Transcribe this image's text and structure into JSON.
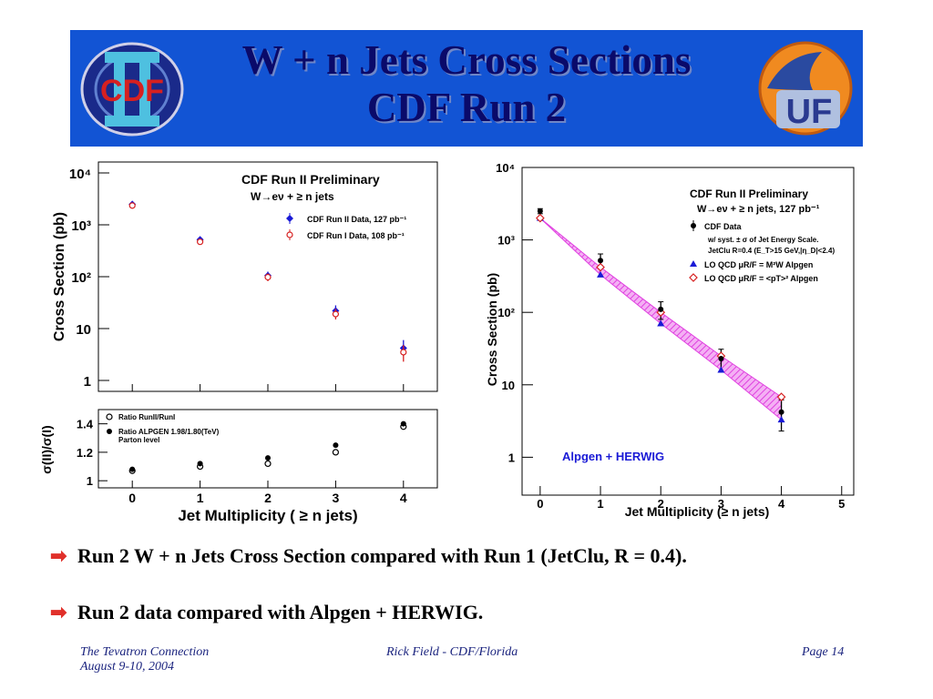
{
  "header": {
    "title_line1": "W + n Jets Cross Sections",
    "title_line2": "CDF Run 2",
    "logo_left_text": "CDF",
    "logo_right_text": "UF"
  },
  "bullets": [
    "Run 2 W + n Jets Cross Section compared with Run 1 (JetClu, R = 0.4).",
    "Run 2 data compared with Alpgen + HERWIG."
  ],
  "footer": {
    "left_line1": "The Tevatron Connection",
    "left_line2": "August 9-10, 2004",
    "center": "Rick Field - CDF/Florida",
    "right": "Page 14"
  },
  "colors": {
    "header_bg": "#1254d4",
    "title": "#0a0a6a",
    "run2": "#1a1ad6",
    "run1": "#d62020",
    "band": "#e040e0",
    "bullet_arrow": "#e0302a"
  },
  "chart_data": [
    {
      "type": "scatter",
      "title": "CDF Run II Preliminary",
      "subtitle": "W→eν + ≥ n jets",
      "xlabel": "",
      "ylabel": "Cross Section (pb)",
      "x": [
        0,
        1,
        2,
        3,
        4
      ],
      "xlim": [
        -0.5,
        4.5
      ],
      "ylim": [
        1,
        10000
      ],
      "log_y": true,
      "y_ticks": [
        "10⁴",
        "10³",
        "10²",
        "10",
        "1"
      ],
      "legend": "top-right",
      "series": [
        {
          "name": "CDF Run II Data, 127 pb⁻¹",
          "marker": "filled-diamond",
          "color": "#1a1ad6",
          "values": [
            2500,
            520,
            105,
            22,
            4.2
          ],
          "err_lo": [
            2300,
            460,
            88,
            17,
            3.0
          ],
          "err_hi": [
            2700,
            580,
            125,
            28,
            6.0
          ]
        },
        {
          "name": "CDF Run I Data, 108 pb⁻¹",
          "marker": "open-circle",
          "color": "#d62020",
          "values": [
            2350,
            470,
            98,
            19,
            3.5
          ],
          "err_lo": [
            2150,
            420,
            82,
            15,
            2.3
          ],
          "err_hi": [
            2550,
            520,
            115,
            24,
            4.8
          ]
        }
      ]
    },
    {
      "type": "scatter",
      "xlabel": "Jet Multiplicity (   ≥ n jets)",
      "ylabel": "σ(II)/σ(I)",
      "x": [
        0,
        1,
        2,
        3,
        4
      ],
      "xlim": [
        -0.5,
        4.5
      ],
      "x_ticks": [
        "0",
        "1",
        "2",
        "3",
        "4"
      ],
      "ylim": [
        0.95,
        1.5
      ],
      "y_ticks": [
        "1.4",
        "1.2",
        "1"
      ],
      "legend": "top-left",
      "series": [
        {
          "name": "Ratio RunII/RunI",
          "marker": "open-circle",
          "values": [
            1.07,
            1.1,
            1.12,
            1.2,
            1.38
          ]
        },
        {
          "name": "Ratio ALPGEN 1.98/1.80(TeV)",
          "name_line2": "Parton level",
          "marker": "filled-circle",
          "values": [
            1.08,
            1.12,
            1.16,
            1.25,
            1.4
          ]
        }
      ]
    },
    {
      "type": "scatter",
      "title": "CDF Run II Preliminary",
      "subtitle": "W→eν + ≥ n jets, 127 pb⁻¹",
      "xlabel": "Jet Multiplicity (≥ n jets)",
      "ylabel": "Cross Section (pb)",
      "x_ticks": [
        "0",
        "1",
        "2",
        "3",
        "4",
        "5"
      ],
      "xlim": [
        -0.3,
        5.2
      ],
      "ylim": [
        0.3,
        10000
      ],
      "log_y": true,
      "y_ticks": [
        "10⁴",
        "10³",
        "10²",
        "10",
        "1"
      ],
      "annotation": "Alpgen + HERWIG",
      "legend_notes": [
        "w/ syst. ± σ of Jet Energy Scale.",
        "JetClu R=0.4 (E_T>15 GeV,|η_D|<2.4)"
      ],
      "series": [
        {
          "name": "CDF Data",
          "marker": "filled-circle",
          "color": "#000000",
          "x": [
            0,
            1,
            2,
            3,
            4
          ],
          "values": [
            2500,
            520,
            110,
            23,
            4.2
          ],
          "err_lo": [
            2300,
            420,
            80,
            15,
            2.3
          ],
          "err_hi": [
            2700,
            640,
            140,
            31,
            6.2
          ]
        },
        {
          "name": "LO QCD μR/F = M²W Alpgen",
          "marker": "filled-triangle",
          "color": "#1a1ad6",
          "x": [
            0,
            1,
            2,
            3,
            4
          ],
          "values": [
            2000,
            330,
            70,
            16,
            3.3
          ]
        },
        {
          "name": "LO QCD μR/F = <pT>² Alpgen",
          "marker": "open-diamond",
          "color": "#d62020",
          "x": [
            0,
            1,
            2,
            3,
            4
          ],
          "values": [
            2000,
            420,
            100,
            25,
            6.8
          ]
        }
      ]
    }
  ]
}
